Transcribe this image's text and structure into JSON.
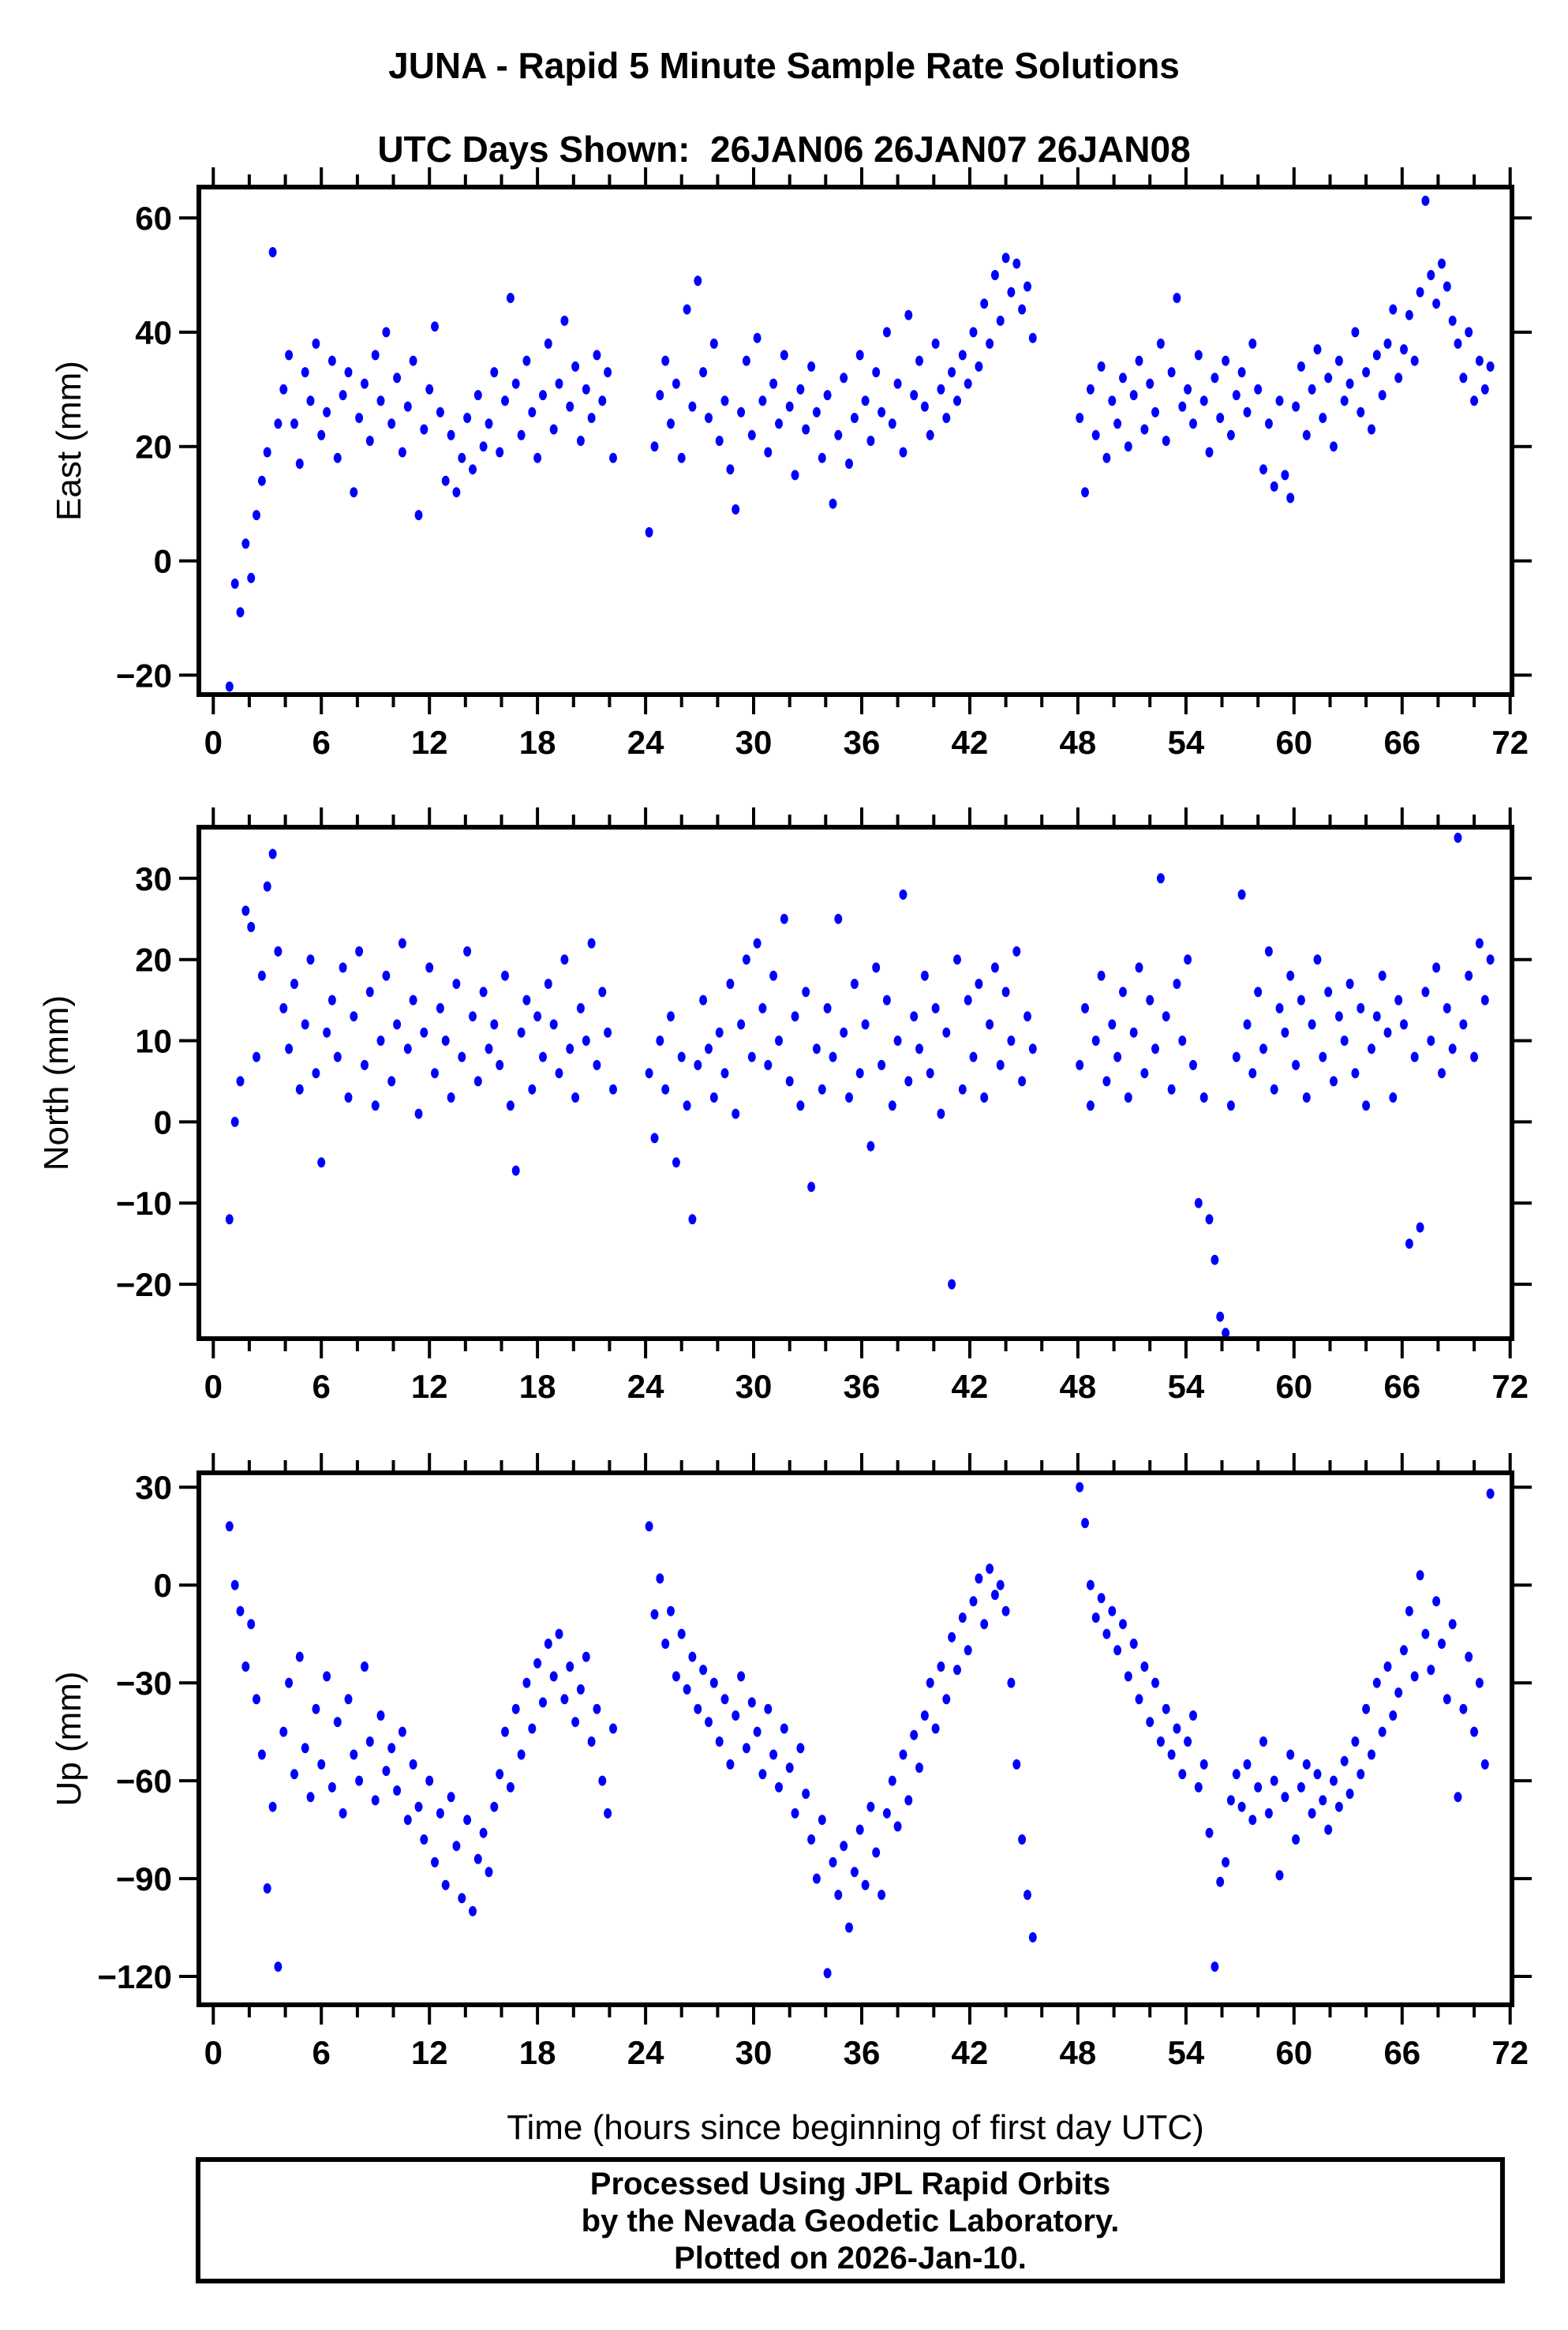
{
  "title": {
    "line1": "JUNA - Rapid 5 Minute Sample Rate Solutions",
    "line2": "UTC Days Shown:  26JAN06 26JAN07 26JAN08"
  },
  "footer": {
    "line1": "Processed Using JPL Rapid Orbits",
    "line2": "by the Nevada Geodetic Laboratory.",
    "line3": "Plotted on 2026-Jan-10."
  },
  "point_color": "#0000ff",
  "frame_color": "#000000",
  "chart_data": {
    "type": "scatter",
    "xlabel": "Time (hours since beginning of first day UTC)",
    "x_major_ticks": [
      0,
      6,
      12,
      18,
      24,
      30,
      36,
      42,
      48,
      54,
      60,
      66,
      72
    ],
    "x_minor_step": 2,
    "xlim": [
      -0.8,
      72.1
    ],
    "grid": false,
    "legend": "none",
    "x": [
      0.9,
      1.2,
      1.5,
      1.8,
      2.1,
      2.4,
      2.7,
      3,
      3.3,
      3.6,
      3.9,
      4.2,
      4.5,
      4.8,
      5.1,
      5.4,
      5.7,
      6,
      6.3,
      6.6,
      6.9,
      7.2,
      7.5,
      7.8,
      8.1,
      8.4,
      8.7,
      9,
      9.3,
      9.6,
      9.9,
      10.2,
      10.5,
      10.8,
      11.1,
      11.4,
      11.7,
      12,
      12.3,
      12.6,
      12.9,
      13.2,
      13.5,
      13.8,
      14.1,
      14.4,
      14.7,
      15,
      15.3,
      15.6,
      15.9,
      16.2,
      16.5,
      16.8,
      17.1,
      17.4,
      17.7,
      18,
      18.3,
      18.6,
      18.9,
      19.2,
      19.5,
      19.8,
      20.1,
      20.4,
      20.7,
      21,
      21.3,
      21.6,
      21.9,
      22.2,
      24.2,
      24.5,
      24.8,
      25.1,
      25.4,
      25.7,
      26,
      26.3,
      26.6,
      26.9,
      27.2,
      27.5,
      27.8,
      28.1,
      28.4,
      28.7,
      29,
      29.3,
      29.6,
      29.9,
      30.2,
      30.5,
      30.8,
      31.1,
      31.4,
      31.7,
      32,
      32.3,
      32.6,
      32.9,
      33.2,
      33.5,
      33.8,
      34.1,
      34.4,
      34.7,
      35,
      35.3,
      35.6,
      35.9,
      36.2,
      36.5,
      36.8,
      37.1,
      37.4,
      37.7,
      38,
      38.3,
      38.6,
      38.9,
      39.2,
      39.5,
      39.8,
      40.1,
      40.4,
      40.7,
      41,
      41.3,
      41.6,
      41.9,
      42.2,
      42.5,
      42.8,
      43.1,
      43.4,
      43.7,
      44,
      44.3,
      44.6,
      44.9,
      45.2,
      45.5,
      48.1,
      48.4,
      48.7,
      49,
      49.3,
      49.6,
      49.9,
      50.2,
      50.5,
      50.8,
      51.1,
      51.4,
      51.7,
      52,
      52.3,
      52.6,
      52.9,
      53.2,
      53.5,
      53.8,
      54.1,
      54.4,
      54.7,
      55,
      55.3,
      55.6,
      55.9,
      56.2,
      56.5,
      56.8,
      57.1,
      57.4,
      57.7,
      58,
      58.3,
      58.6,
      58.9,
      59.2,
      59.5,
      59.8,
      60.1,
      60.4,
      60.7,
      61,
      61.3,
      61.6,
      61.9,
      62.2,
      62.5,
      62.8,
      63.1,
      63.4,
      63.7,
      64,
      64.3,
      64.6,
      64.9,
      65.2,
      65.5,
      65.8,
      66.1,
      66.4,
      66.7,
      67,
      67.3,
      67.6,
      67.9,
      68.2,
      68.5,
      68.8,
      69.1,
      69.4,
      69.7,
      70,
      70.3,
      70.6,
      70.9
    ],
    "panels": [
      {
        "key": "east",
        "ylabel": "East (mm)",
        "yticks": [
          -20,
          0,
          20,
          40,
          60
        ],
        "ylim": [
          -23.4,
          65.4
        ],
        "y": [
          -22,
          -4,
          -9,
          3,
          -3,
          8,
          14,
          19,
          54,
          24,
          30,
          36,
          24,
          17,
          33,
          28,
          38,
          22,
          26,
          35,
          18,
          29,
          33,
          12,
          25,
          31,
          21,
          36,
          28,
          40,
          24,
          32,
          19,
          27,
          35,
          8,
          23,
          30,
          41,
          26,
          14,
          22,
          12,
          18,
          25,
          16,
          29,
          20,
          24,
          33,
          19,
          28,
          46,
          31,
          22,
          35,
          26,
          18,
          29,
          38,
          23,
          31,
          42,
          27,
          34,
          21,
          30,
          25,
          36,
          28,
          33,
          18,
          5,
          20,
          29,
          35,
          24,
          31,
          18,
          44,
          27,
          49,
          33,
          25,
          38,
          21,
          28,
          16,
          9,
          26,
          35,
          22,
          39,
          28,
          19,
          31,
          24,
          36,
          27,
          15,
          30,
          23,
          34,
          26,
          18,
          29,
          10,
          22,
          32,
          17,
          25,
          36,
          28,
          21,
          33,
          26,
          40,
          24,
          31,
          19,
          43,
          29,
          35,
          27,
          22,
          38,
          30,
          25,
          33,
          28,
          36,
          31,
          40,
          34,
          45,
          38,
          50,
          42,
          53,
          47,
          52,
          44,
          48,
          39,
          25,
          12,
          30,
          22,
          34,
          18,
          28,
          24,
          32,
          20,
          29,
          35,
          23,
          31,
          26,
          38,
          21,
          33,
          46,
          27,
          30,
          24,
          36,
          28,
          19,
          32,
          25,
          35,
          22,
          29,
          33,
          26,
          38,
          30,
          16,
          24,
          13,
          28,
          15,
          11,
          27,
          34,
          22,
          30,
          37,
          25,
          32,
          20,
          35,
          28,
          31,
          40,
          26,
          33,
          23,
          36,
          29,
          38,
          44,
          32,
          37,
          43,
          35,
          47,
          63,
          50,
          45,
          52,
          48,
          42,
          38,
          32,
          40,
          28,
          35,
          30,
          34
        ]
      },
      {
        "key": "north",
        "ylabel": "North (mm)",
        "yticks": [
          -20,
          -10,
          0,
          10,
          20,
          30
        ],
        "ylim": [
          -26.7,
          36.3
        ],
        "y": [
          -12,
          0,
          5,
          26,
          24,
          8,
          18,
          29,
          33,
          21,
          14,
          9,
          17,
          4,
          12,
          20,
          6,
          -5,
          11,
          15,
          8,
          19,
          3,
          13,
          21,
          7,
          16,
          2,
          10,
          18,
          5,
          12,
          22,
          9,
          15,
          1,
          11,
          19,
          6,
          14,
          10,
          3,
          17,
          8,
          21,
          13,
          5,
          16,
          9,
          12,
          7,
          18,
          2,
          -6,
          11,
          15,
          4,
          13,
          8,
          17,
          12,
          6,
          20,
          9,
          3,
          14,
          10,
          22,
          7,
          16,
          11,
          4,
          6,
          -2,
          10,
          4,
          13,
          -5,
          8,
          2,
          -12,
          7,
          15,
          9,
          3,
          11,
          6,
          17,
          1,
          12,
          20,
          8,
          22,
          14,
          7,
          18,
          10,
          25,
          5,
          13,
          2,
          16,
          -8,
          9,
          4,
          14,
          8,
          25,
          11,
          3,
          17,
          6,
          12,
          -3,
          19,
          7,
          15,
          2,
          10,
          28,
          5,
          13,
          9,
          18,
          6,
          14,
          1,
          11,
          -20,
          20,
          4,
          15,
          8,
          17,
          3,
          12,
          19,
          7,
          16,
          10,
          21,
          5,
          13,
          9,
          7,
          14,
          2,
          10,
          18,
          5,
          12,
          8,
          16,
          3,
          11,
          19,
          6,
          15,
          9,
          30,
          13,
          4,
          17,
          10,
          20,
          7,
          -10,
          3,
          -12,
          -17,
          -24,
          -26,
          2,
          8,
          28,
          12,
          6,
          16,
          9,
          21,
          4,
          14,
          11,
          18,
          7,
          15,
          3,
          12,
          20,
          8,
          16,
          5,
          13,
          10,
          17,
          6,
          14,
          2,
          9,
          13,
          18,
          11,
          3,
          15,
          12,
          -15,
          8,
          -13,
          16,
          10,
          19,
          6,
          14,
          9,
          35,
          12,
          18,
          8,
          22,
          15,
          20
        ]
      },
      {
        "key": "up",
        "ylabel": "Up (mm)",
        "yticks": [
          -120,
          -90,
          -60,
          -30,
          0,
          30
        ],
        "ylim": [
          -128.7,
          34.4
        ],
        "y": [
          18,
          0,
          -8,
          -25,
          -12,
          -35,
          -52,
          -93,
          -68,
          -117,
          -45,
          -30,
          -58,
          -22,
          -50,
          -65,
          -38,
          -55,
          -28,
          -62,
          -42,
          -70,
          -35,
          -52,
          -60,
          -25,
          -48,
          -66,
          -40,
          -57,
          -50,
          -63,
          -45,
          -72,
          -55,
          -68,
          -78,
          -60,
          -85,
          -70,
          -92,
          -65,
          -80,
          -96,
          -72,
          -100,
          -84,
          -76,
          -88,
          -68,
          -58,
          -45,
          -62,
          -38,
          -52,
          -30,
          -44,
          -24,
          -36,
          -18,
          -28,
          -15,
          -35,
          -25,
          -42,
          -32,
          -22,
          -48,
          -38,
          -60,
          -70,
          -44,
          18,
          -9,
          2,
          -18,
          -8,
          -28,
          -15,
          -32,
          -22,
          -38,
          -26,
          -42,
          -30,
          -48,
          -35,
          -55,
          -40,
          -28,
          -50,
          -36,
          -45,
          -58,
          -38,
          -52,
          -62,
          -44,
          -56,
          -70,
          -50,
          -64,
          -78,
          -90,
          -72,
          -119,
          -85,
          -95,
          -80,
          -105,
          -88,
          -75,
          -92,
          -68,
          -82,
          -95,
          -70,
          -60,
          -74,
          -52,
          -66,
          -46,
          -56,
          -40,
          -30,
          -44,
          -25,
          -35,
          -16,
          -26,
          -10,
          -20,
          -5,
          2,
          -12,
          5,
          -3,
          0,
          -8,
          -30,
          -55,
          -78,
          -95,
          -108,
          30,
          19,
          0,
          -10,
          -4,
          -15,
          -8,
          -20,
          -12,
          -28,
          -18,
          -35,
          -25,
          -42,
          -30,
          -48,
          -38,
          -52,
          -44,
          -58,
          -48,
          -40,
          -62,
          -55,
          -76,
          -117,
          -91,
          -85,
          -66,
          -58,
          -68,
          -55,
          -72,
          -62,
          -48,
          -70,
          -60,
          -89,
          -65,
          -52,
          -78,
          -62,
          -55,
          -70,
          -58,
          -66,
          -75,
          -60,
          -68,
          -54,
          -64,
          -48,
          -58,
          -38,
          -52,
          -30,
          -45,
          -25,
          -40,
          -33,
          -20,
          -8,
          -28,
          3,
          -15,
          -26,
          -5,
          -18,
          -35,
          -12,
          -65,
          -38,
          -22,
          -45,
          -30,
          -55,
          28
        ]
      }
    ]
  }
}
